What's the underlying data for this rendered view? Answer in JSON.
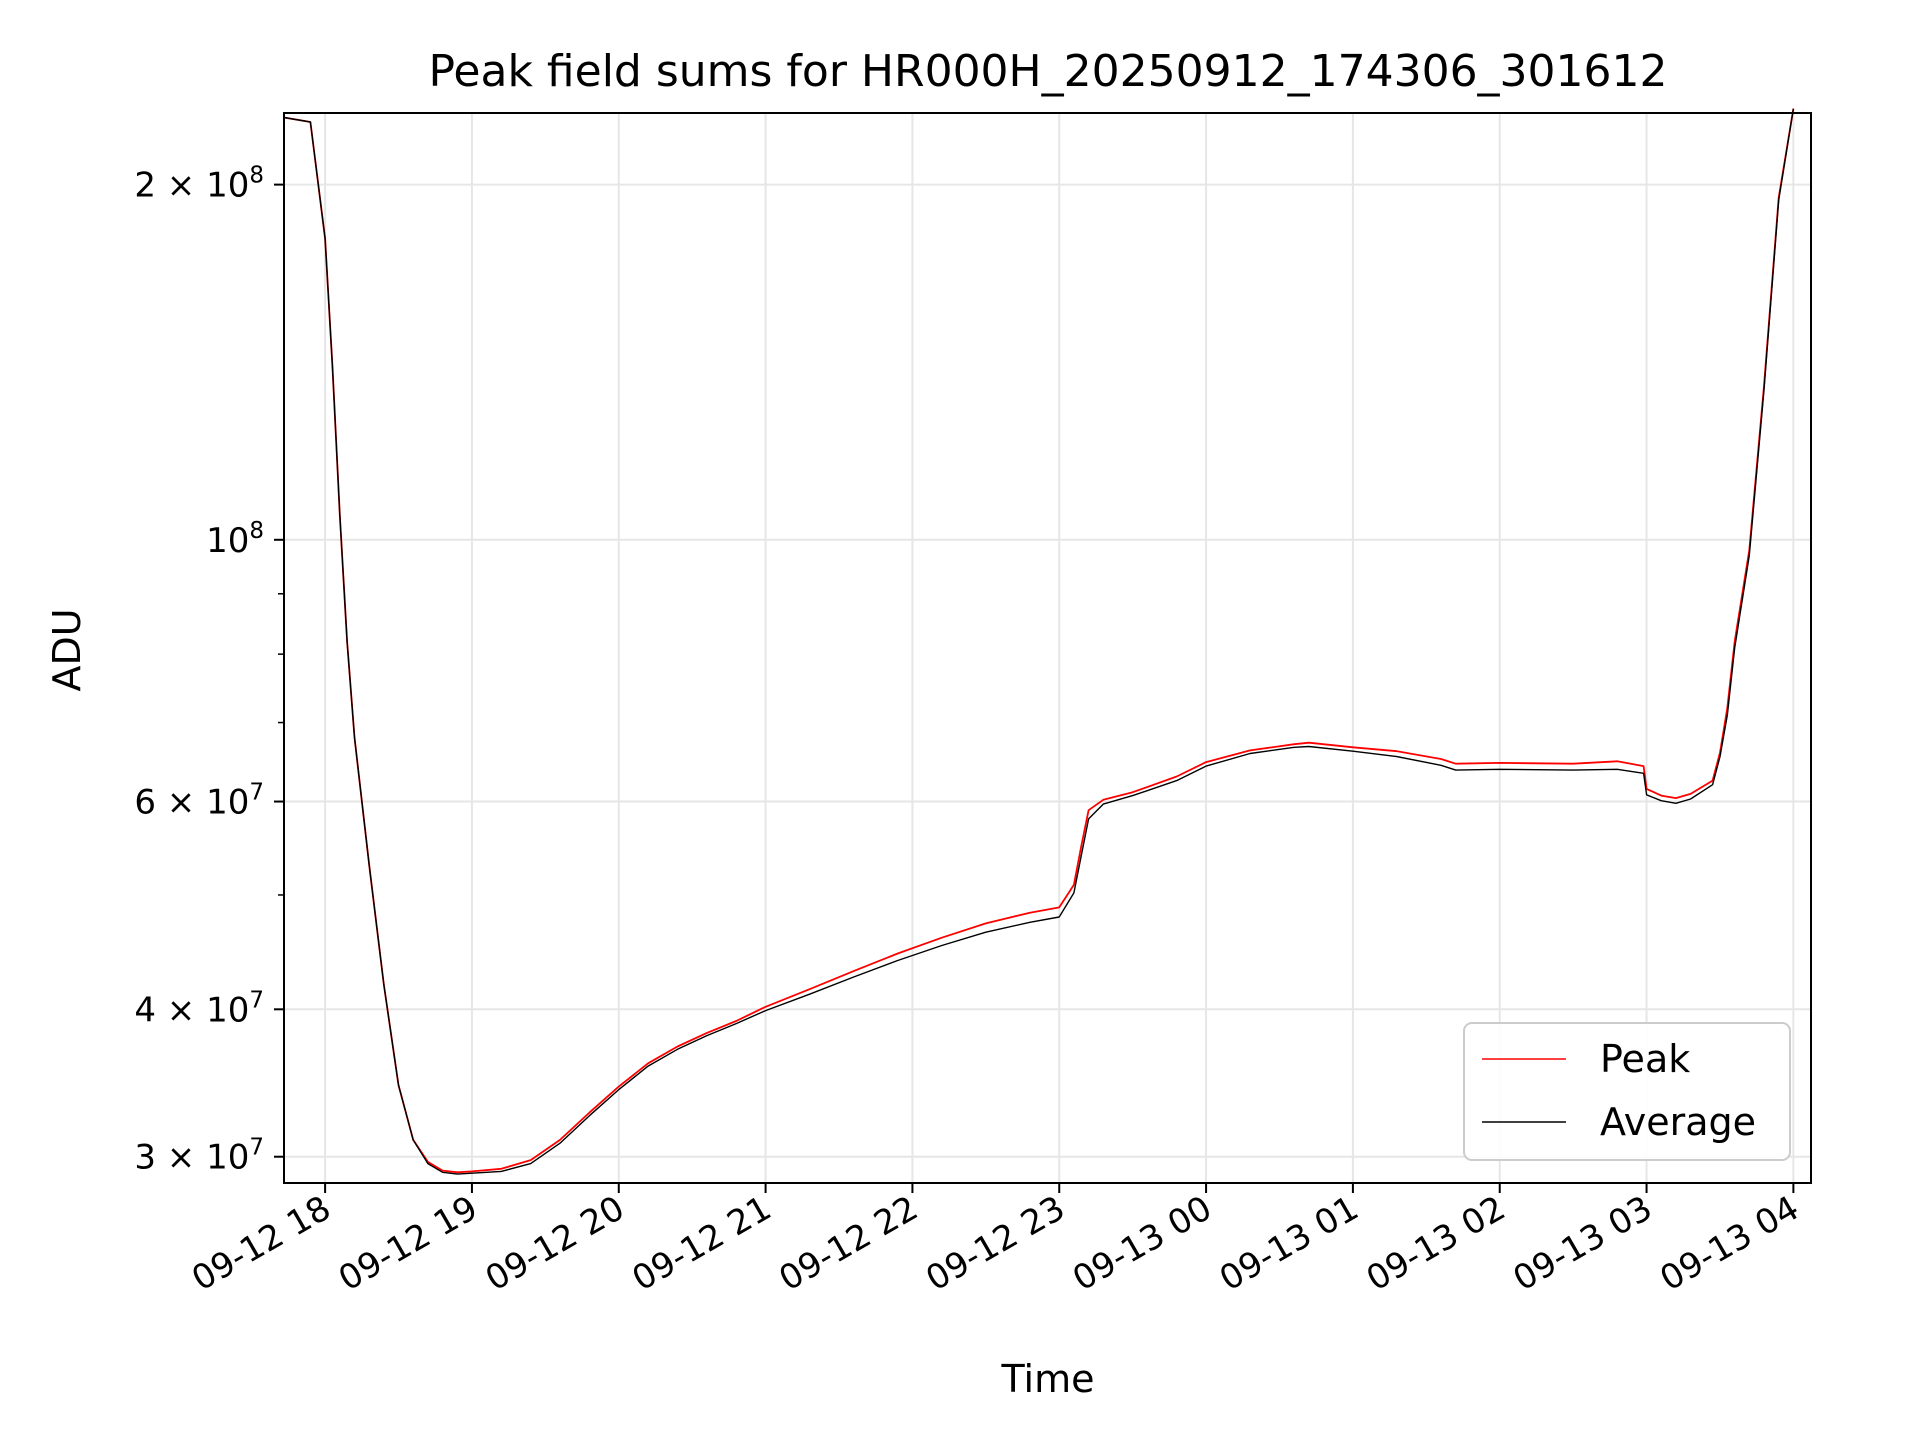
{
  "chart_data": {
    "type": "line",
    "title": "Peak field sums for HR000H_20250912_174306_301612",
    "xlabel": "Time",
    "ylabel": "ADU",
    "yscale": "log",
    "grid": true,
    "legend_position": "bottom-right",
    "xlim_hours": [
      -0.28,
      10.12
    ],
    "ylim": [
      28500000,
      230000000
    ],
    "x_ticks": [
      {
        "label": "09-12 18",
        "hours": 0
      },
      {
        "label": "09-12 19",
        "hours": 1
      },
      {
        "label": "09-12 20",
        "hours": 2
      },
      {
        "label": "09-12 21",
        "hours": 3
      },
      {
        "label": "09-12 22",
        "hours": 4
      },
      {
        "label": "09-12 23",
        "hours": 5
      },
      {
        "label": "09-13 00",
        "hours": 6
      },
      {
        "label": "09-13 01",
        "hours": 7
      },
      {
        "label": "09-13 02",
        "hours": 8
      },
      {
        "label": "09-13 03",
        "hours": 9
      },
      {
        "label": "09-13 04",
        "hours": 10
      }
    ],
    "y_ticks": [
      {
        "base": "3 × 10",
        "exp": "7",
        "value": 30000000
      },
      {
        "base": "4 × 10",
        "exp": "7",
        "value": 40000000
      },
      {
        "base": "6 × 10",
        "exp": "7",
        "value": 60000000
      },
      {
        "base": "10",
        "exp": "8",
        "value": 100000000
      },
      {
        "base": "2 × 10",
        "exp": "8",
        "value": 200000000
      }
    ],
    "y_minor_ticks": [
      50000000,
      70000000,
      80000000,
      90000000
    ],
    "series": [
      {
        "name": "Peak",
        "color": "#ff0000",
        "points": [
          [
            -0.28,
            228000000
          ],
          [
            -0.1,
            226000000
          ],
          [
            0.0,
            180000000
          ],
          [
            0.05,
            140000000
          ],
          [
            0.1,
            105000000
          ],
          [
            0.15,
            82000000
          ],
          [
            0.2,
            68000000
          ],
          [
            0.3,
            53000000
          ],
          [
            0.4,
            42000000
          ],
          [
            0.5,
            34500000
          ],
          [
            0.6,
            31000000
          ],
          [
            0.7,
            29700000
          ],
          [
            0.8,
            29200000
          ],
          [
            0.9,
            29100000
          ],
          [
            1.0,
            29150000
          ],
          [
            1.2,
            29300000
          ],
          [
            1.4,
            29800000
          ],
          [
            1.6,
            31000000
          ],
          [
            1.8,
            32700000
          ],
          [
            2.0,
            34400000
          ],
          [
            2.2,
            36000000
          ],
          [
            2.4,
            37200000
          ],
          [
            2.6,
            38200000
          ],
          [
            2.8,
            39100000
          ],
          [
            3.0,
            40200000
          ],
          [
            3.3,
            41600000
          ],
          [
            3.6,
            43100000
          ],
          [
            3.9,
            44600000
          ],
          [
            4.2,
            46000000
          ],
          [
            4.5,
            47300000
          ],
          [
            4.8,
            48300000
          ],
          [
            5.0,
            48800000
          ],
          [
            5.1,
            51000000
          ],
          [
            5.15,
            55000000
          ],
          [
            5.2,
            59000000
          ],
          [
            5.3,
            60200000
          ],
          [
            5.5,
            61100000
          ],
          [
            5.8,
            63000000
          ],
          [
            6.0,
            64800000
          ],
          [
            6.3,
            66300000
          ],
          [
            6.6,
            67100000
          ],
          [
            6.7,
            67300000
          ],
          [
            7.0,
            66700000
          ],
          [
            7.3,
            66200000
          ],
          [
            7.6,
            65200000
          ],
          [
            7.7,
            64600000
          ],
          [
            8.0,
            64700000
          ],
          [
            8.5,
            64600000
          ],
          [
            8.8,
            64900000
          ],
          [
            8.98,
            64300000
          ],
          [
            9.0,
            61500000
          ],
          [
            9.1,
            60700000
          ],
          [
            9.2,
            60400000
          ],
          [
            9.3,
            60900000
          ],
          [
            9.45,
            62500000
          ],
          [
            9.5,
            66000000
          ],
          [
            9.55,
            72000000
          ],
          [
            9.6,
            82000000
          ],
          [
            9.7,
            98000000
          ],
          [
            9.8,
            135000000
          ],
          [
            9.9,
            195000000
          ],
          [
            10.0,
            232000000
          ]
        ]
      },
      {
        "name": "Average",
        "color": "#000000",
        "points": [
          [
            -0.28,
            228000000
          ],
          [
            -0.1,
            226000000
          ],
          [
            0.0,
            180000000
          ],
          [
            0.05,
            140000000
          ],
          [
            0.1,
            105000000
          ],
          [
            0.15,
            82000000
          ],
          [
            0.2,
            68000000
          ],
          [
            0.3,
            53000000
          ],
          [
            0.4,
            42000000
          ],
          [
            0.5,
            34500000
          ],
          [
            0.6,
            31000000
          ],
          [
            0.7,
            29600000
          ],
          [
            0.8,
            29100000
          ],
          [
            0.9,
            29000000
          ],
          [
            1.0,
            29050000
          ],
          [
            1.2,
            29150000
          ],
          [
            1.4,
            29600000
          ],
          [
            1.6,
            30800000
          ],
          [
            1.8,
            32500000
          ],
          [
            2.0,
            34200000
          ],
          [
            2.2,
            35800000
          ],
          [
            2.4,
            37000000
          ],
          [
            2.6,
            38000000
          ],
          [
            2.8,
            38900000
          ],
          [
            3.0,
            39900000
          ],
          [
            3.3,
            41200000
          ],
          [
            3.6,
            42600000
          ],
          [
            3.9,
            44000000
          ],
          [
            4.2,
            45300000
          ],
          [
            4.5,
            46500000
          ],
          [
            4.8,
            47400000
          ],
          [
            5.0,
            47900000
          ],
          [
            5.1,
            50200000
          ],
          [
            5.15,
            54000000
          ],
          [
            5.2,
            58000000
          ],
          [
            5.3,
            59700000
          ],
          [
            5.5,
            60700000
          ],
          [
            5.8,
            62500000
          ],
          [
            6.0,
            64300000
          ],
          [
            6.3,
            65900000
          ],
          [
            6.6,
            66700000
          ],
          [
            6.7,
            66800000
          ],
          [
            7.0,
            66200000
          ],
          [
            7.3,
            65500000
          ],
          [
            7.6,
            64400000
          ],
          [
            7.7,
            63800000
          ],
          [
            8.0,
            63900000
          ],
          [
            8.5,
            63800000
          ],
          [
            8.8,
            63900000
          ],
          [
            8.98,
            63400000
          ],
          [
            9.0,
            60800000
          ],
          [
            9.1,
            60100000
          ],
          [
            9.2,
            59800000
          ],
          [
            9.3,
            60300000
          ],
          [
            9.45,
            62000000
          ],
          [
            9.5,
            65500000
          ],
          [
            9.55,
            71000000
          ],
          [
            9.6,
            81000000
          ],
          [
            9.7,
            97000000
          ],
          [
            9.8,
            134000000
          ],
          [
            9.9,
            194000000
          ],
          [
            10.0,
            232000000
          ]
        ]
      }
    ]
  }
}
